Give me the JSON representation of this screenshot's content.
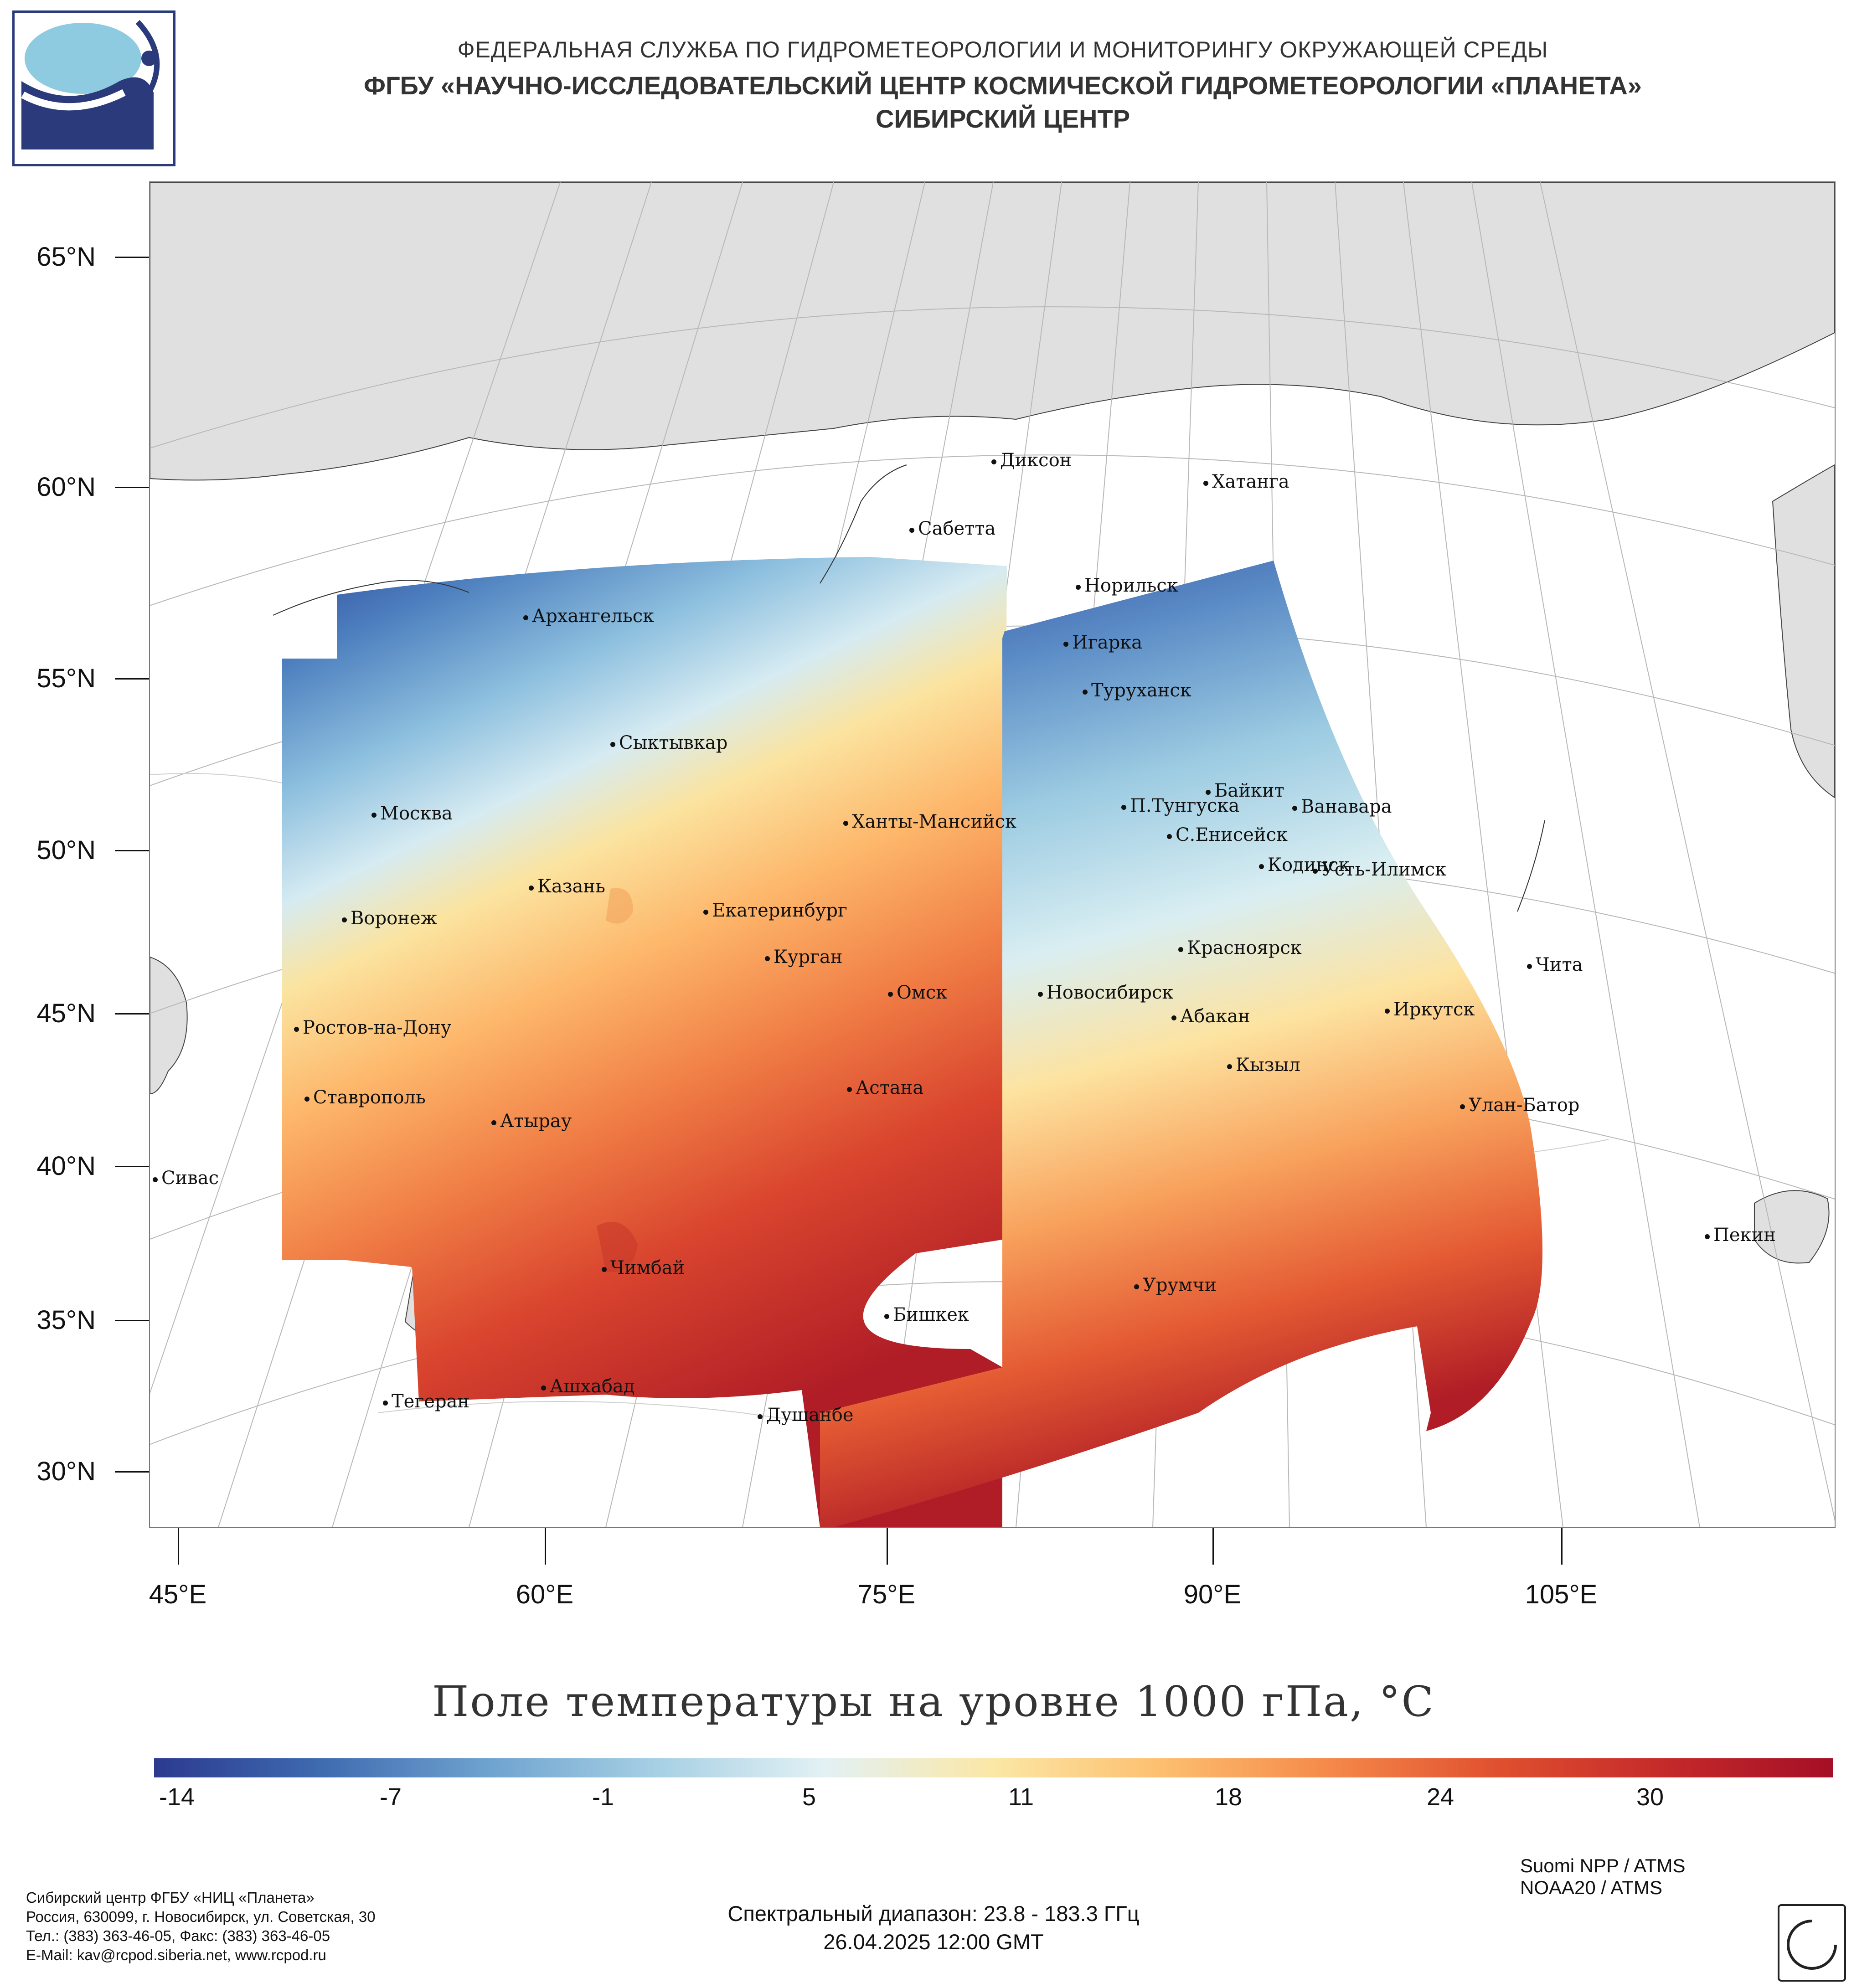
{
  "header": {
    "line1": "ФЕДЕРАЛЬНАЯ СЛУЖБА ПО ГИДРОМЕТЕОРОЛОГИИ И МОНИТОРИНГУ ОКРУЖАЮЩЕЙ СРЕДЫ",
    "line2": "ФГБУ «НАУЧНО-ИССЛЕДОВАТЕЛЬСКИЙ ЦЕНТР КОСМИЧЕСКОЙ ГИДРОМЕТЕОРОЛОГИИ «ПЛАНЕТА»",
    "line3": "СИБИРСКИЙ ЦЕНТР"
  },
  "map": {
    "lat_labels": [
      "65°N",
      "60°N",
      "55°N",
      "50°N",
      "45°N",
      "40°N",
      "35°N",
      "30°N"
    ],
    "lon_labels": [
      "45°E",
      "60°E",
      "75°E",
      "90°E",
      "105°E"
    ],
    "cities": [
      {
        "name": "Диксон"
      },
      {
        "name": "Хатанга"
      },
      {
        "name": "Сабетта"
      },
      {
        "name": "Норильск"
      },
      {
        "name": "Архангельск"
      },
      {
        "name": "Игарка"
      },
      {
        "name": "Туруханск"
      },
      {
        "name": "Сыктывкар"
      },
      {
        "name": "Байкит"
      },
      {
        "name": "Москва"
      },
      {
        "name": "Ханты-Мансийск"
      },
      {
        "name": "П.Тунгуска"
      },
      {
        "name": "Ванавара"
      },
      {
        "name": "С.Енисейск"
      },
      {
        "name": "Кодинск"
      },
      {
        "name": "Усть-Илимск"
      },
      {
        "name": "Казань"
      },
      {
        "name": "Екатеринбург"
      },
      {
        "name": "Воронеж"
      },
      {
        "name": "Красноярск"
      },
      {
        "name": "Курган"
      },
      {
        "name": "Чита"
      },
      {
        "name": "Омск"
      },
      {
        "name": "Новосибирск"
      },
      {
        "name": "Иркутск"
      },
      {
        "name": "Абакан"
      },
      {
        "name": "Ростов-на-Дону"
      },
      {
        "name": "Кызыл"
      },
      {
        "name": "Ставрополь"
      },
      {
        "name": "Астана"
      },
      {
        "name": "Улан-Батор"
      },
      {
        "name": "Атырау"
      },
      {
        "name": "Сивас"
      },
      {
        "name": "Пекин"
      },
      {
        "name": "Чимбай"
      },
      {
        "name": "Урумчи"
      },
      {
        "name": "Бишкек"
      },
      {
        "name": "Ашхабад"
      },
      {
        "name": "Тегеран"
      },
      {
        "name": "Душанбе"
      }
    ]
  },
  "title": "Поле температуры на уровне 1000 гПа, °C",
  "colorbar": {
    "labels": [
      "-14",
      "-7",
      "-1",
      "5",
      "11",
      "18",
      "24",
      "30"
    ],
    "colors": [
      "#2b3a8f",
      "#3f6bb0",
      "#6fa3cf",
      "#a7d0e4",
      "#e3f1f4",
      "#fbe7a6",
      "#fdbf6f",
      "#f5894a",
      "#e0502f",
      "#c42a2a",
      "#a50f26"
    ]
  },
  "footer": {
    "org_lines": [
      "Сибирский центр ФГБУ «НИЦ «Планета»",
      "Россия, 630099, г. Новосибирск, ул. Советская, 30",
      "Тел.: (383) 363-46-05, Факс: (383) 363-46-05",
      "E-Mail: kav@rcpod.siberia.net, www.rcpod.ru"
    ],
    "spectral": "Спектральный диапазон: 23.8 - 183.3 ГГц",
    "datetime": "26.04.2025 12:00 GMT",
    "satellites": [
      "Suomi NPP / ATMS",
      "NOAA20 / ATMS"
    ]
  }
}
